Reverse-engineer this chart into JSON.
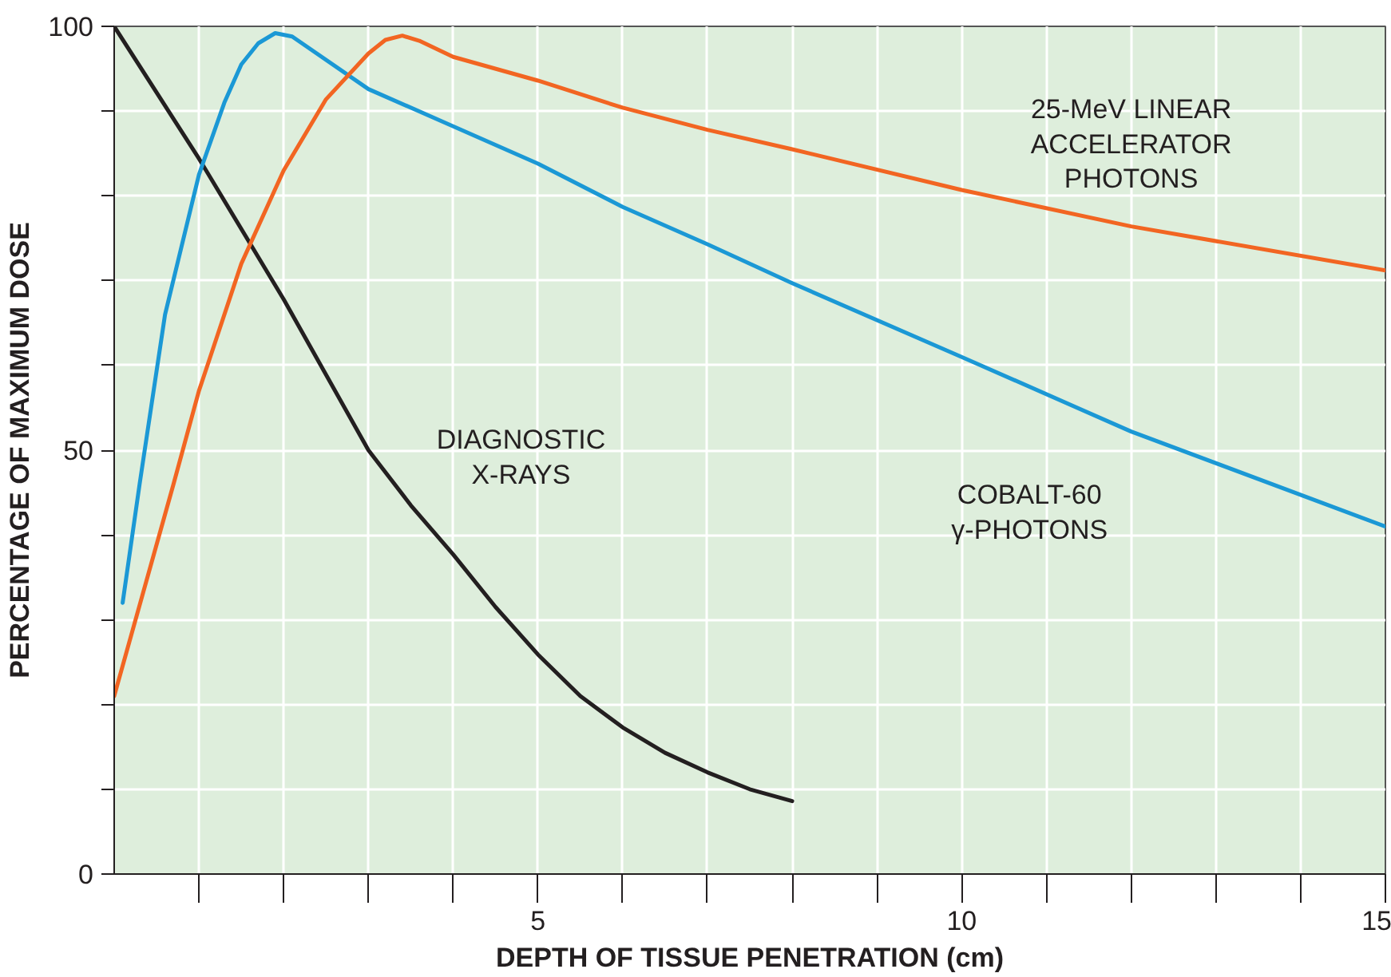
{
  "chart_data": {
    "type": "line",
    "xlabel": "DEPTH OF TISSUE PENETRATION (cm)",
    "ylabel": "PERCENTAGE OF MAXIMUM DOSE",
    "xlim": [
      0,
      15
    ],
    "ylim": [
      0,
      100
    ],
    "xticks": [
      {
        "value": 1,
        "label": null
      },
      {
        "value": 2,
        "label": null
      },
      {
        "value": 3,
        "label": null
      },
      {
        "value": 4,
        "label": null
      },
      5,
      {
        "value": 6,
        "label": null
      },
      {
        "value": 7,
        "label": null
      },
      {
        "value": 8,
        "label": null
      },
      {
        "value": 9,
        "label": null
      },
      10,
      {
        "value": 11,
        "label": null
      },
      {
        "value": 12,
        "label": null
      },
      {
        "value": 13,
        "label": null
      },
      {
        "value": 14,
        "label": null
      },
      15
    ],
    "yticks": [
      0,
      {
        "value": 10,
        "label": null
      },
      {
        "value": 20,
        "label": null
      },
      {
        "value": 30,
        "label": null
      },
      {
        "value": 40,
        "label": null
      },
      50,
      {
        "value": 60,
        "label": null
      },
      {
        "value": 70,
        "label": null
      },
      {
        "value": 80,
        "label": null
      },
      {
        "value": 90,
        "label": null
      },
      100
    ],
    "grid": true,
    "marker": "none",
    "line_style": "solid",
    "series": [
      {
        "name": "DIAGNOSTIC\nX-RAYS",
        "color": "#231f20",
        "x": [
          0,
          1,
          2,
          3,
          3.5,
          4,
          4.5,
          5,
          5.5,
          6,
          6.5,
          7,
          7.5,
          8
        ],
        "values": [
          100,
          84.4,
          67.8,
          50,
          43.5,
          37.7,
          31.5,
          25.9,
          21,
          17.3,
          14.3,
          12,
          10,
          8.6
        ]
      },
      {
        "name": "COBALT-60\nγ-PHOTONS",
        "color": "#1b98d5",
        "x": [
          0.1,
          0.3,
          0.6,
          1,
          1.3,
          1.5,
          1.7,
          1.9,
          2.1,
          3,
          4,
          5,
          6,
          7,
          8,
          10,
          12,
          15
        ],
        "values": [
          32,
          46,
          66,
          82.5,
          91,
          95.5,
          98,
          99.2,
          98.8,
          92.6,
          88.2,
          83.8,
          78.7,
          74.3,
          69.7,
          61,
          52.2,
          41
        ]
      },
      {
        "name": "25-MeV LINEAR\nACCELERATOR\nPHOTONS",
        "color": "#f26522",
        "x": [
          0,
          0.7,
          1,
          1.5,
          2,
          2.5,
          3,
          3.2,
          3.4,
          3.6,
          4,
          5,
          6,
          7,
          8,
          10,
          12,
          15
        ],
        "values": [
          21,
          46,
          57,
          72,
          83,
          91.4,
          96.8,
          98.4,
          98.9,
          98.3,
          96.4,
          93.6,
          90.4,
          87.8,
          85.5,
          80.7,
          76.4,
          71.2
        ]
      }
    ]
  }
}
